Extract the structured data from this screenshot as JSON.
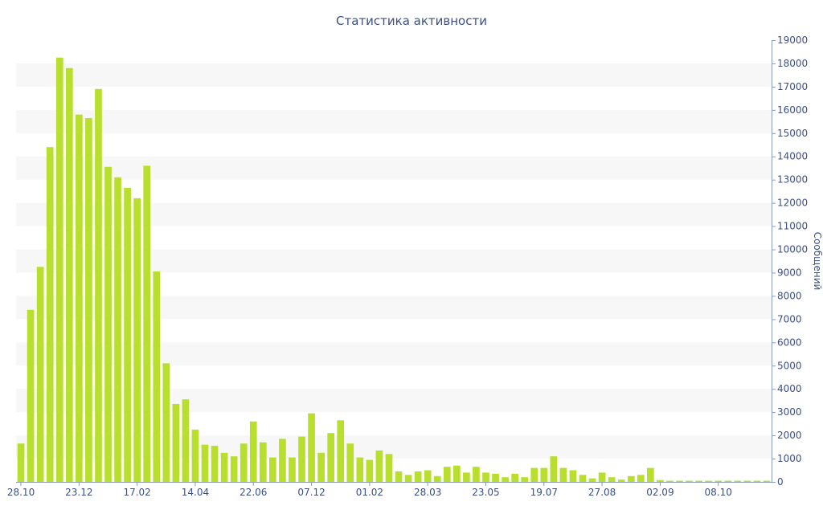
{
  "colors": {
    "bar": "#b8de2e",
    "text": "#3c4f86",
    "band": "#f7f7f7",
    "axis": "#8a9bb8"
  },
  "chart_data": {
    "type": "bar",
    "title": "Статистика активности",
    "ylabel": "Сообщений",
    "ylim": [
      0,
      19000
    ],
    "y_axis_side": "right",
    "grid": "alternating horizontal bands",
    "legend": "none",
    "yticks": [
      "0",
      "1000",
      "2000",
      "3000",
      "4000",
      "5000",
      "6000",
      "7000",
      "8000",
      "9000",
      "10000",
      "11000",
      "12000",
      "13000",
      "14000",
      "15000",
      "16000",
      "17000",
      "18000",
      "19000"
    ],
    "xtick_labels": [
      {
        "label": "28.10",
        "index": 0
      },
      {
        "label": "23.12",
        "index": 6
      },
      {
        "label": "17.02",
        "index": 12
      },
      {
        "label": "14.04",
        "index": 18
      },
      {
        "label": "22.06",
        "index": 24
      },
      {
        "label": "07.12",
        "index": 30
      },
      {
        "label": "01.02",
        "index": 36
      },
      {
        "label": "28.03",
        "index": 42
      },
      {
        "label": "23.05",
        "index": 48
      },
      {
        "label": "19.07",
        "index": 54
      },
      {
        "label": "27.08",
        "index": 60
      },
      {
        "label": "02.09",
        "index": 66
      },
      {
        "label": "08.10",
        "index": 72
      }
    ],
    "values": [
      1650,
      7400,
      9250,
      14400,
      18250,
      17800,
      15800,
      15650,
      16900,
      13550,
      13100,
      12650,
      12200,
      13600,
      9050,
      5100,
      3350,
      3550,
      2250,
      1600,
      1550,
      1250,
      1100,
      1650,
      2600,
      1700,
      1050,
      1850,
      1050,
      1950,
      2950,
      1250,
      2100,
      2650,
      1650,
      1050,
      950,
      1350,
      1200,
      450,
      300,
      450,
      500,
      250,
      650,
      700,
      400,
      650,
      400,
      350,
      200,
      350,
      200,
      600,
      600,
      1100,
      600,
      500,
      300,
      150,
      400,
      200,
      100,
      250,
      300,
      600,
      80,
      50,
      50,
      50,
      50,
      50,
      50,
      50,
      50,
      50,
      50,
      50
    ]
  }
}
